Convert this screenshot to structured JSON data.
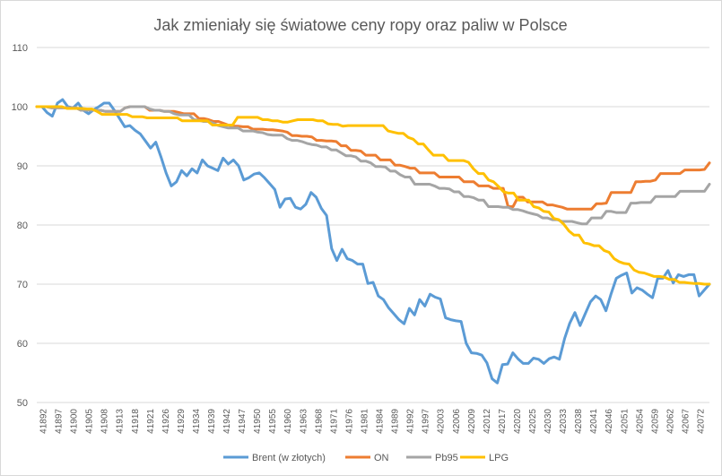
{
  "chart_data": {
    "type": "line",
    "title": "Jak zmieniały się światowe ceny ropy oraz paliw w Polsce",
    "xlabel": "",
    "ylabel": "",
    "ylim": [
      50,
      110
    ],
    "yticks": [
      50,
      60,
      70,
      80,
      90,
      100,
      110
    ],
    "grid": true,
    "legend_position": "bottom",
    "x_tick_labels": [
      "41892",
      "41897",
      "41900",
      "41905",
      "41908",
      "41913",
      "41918",
      "41921",
      "41926",
      "41929",
      "41934",
      "41939",
      "41942",
      "41947",
      "41950",
      "41955",
      "41960",
      "41963",
      "41968",
      "41971",
      "41976",
      "41981",
      "41984",
      "41989",
      "41992",
      "41997",
      "42003",
      "42006",
      "42009",
      "42012",
      "42017",
      "42020",
      "42025",
      "42030",
      "42033",
      "42038",
      "42041",
      "42046",
      "42051",
      "42054",
      "42059",
      "42062",
      "42067",
      "42072"
    ],
    "series": [
      {
        "name": "Brent (w złotych)",
        "color": "#5b9bd5",
        "values": [
          100,
          100,
          99,
          98.4,
          100.6,
          101.2,
          100,
          99.8,
          100.6,
          99.4,
          98.8,
          99.5,
          100,
          100.6,
          100.6,
          99.4,
          98,
          96.6,
          96.8,
          96,
          95.4,
          94.2,
          93,
          94,
          91.5,
          88.8,
          86.6,
          87.3,
          89.2,
          88.3,
          89.5,
          88.8,
          91,
          90,
          89.6,
          89.2,
          91.3,
          90.3,
          91,
          90,
          87.6,
          88,
          88.6,
          88.8,
          88,
          87,
          86,
          83,
          84.4,
          84.5,
          83,
          82.7,
          83.5,
          85.5,
          84.7,
          82.8,
          81.6,
          76,
          74,
          75.9,
          74.3,
          74,
          73.4,
          73.4,
          70.1,
          70.3,
          68,
          67.4,
          66,
          65,
          64,
          63.3,
          65.9,
          64.8,
          67.4,
          66.3,
          68.3,
          67.8,
          67.5,
          64.3,
          64,
          63.8,
          63.7,
          60,
          58.4,
          58.3,
          58,
          56.7,
          54,
          53.3,
          56.4,
          56.5,
          58.4,
          57.4,
          56.6,
          56.6,
          57.5,
          57.3,
          56.6,
          57.4,
          57.7,
          57.3,
          60.8,
          63.4,
          65.2,
          63,
          65,
          67,
          68,
          67.4,
          65.5,
          68.4,
          71,
          71.5,
          71.9,
          68.5,
          69.4,
          69,
          68.3,
          67.7,
          71,
          71,
          72.3,
          70.2,
          71.6,
          71.3,
          71.6,
          71.6,
          68,
          69,
          70
        ]
      },
      {
        "name": "ON",
        "color": "#ed7d31",
        "values": [
          100,
          100,
          100,
          99.8,
          99.8,
          99.8,
          99.8,
          99.8,
          99.8,
          99.4,
          99.4,
          99.4,
          99.4,
          99.4,
          99.2,
          99.2,
          99.2,
          99.2,
          99.8,
          100,
          100,
          100,
          100,
          99.4,
          99.4,
          99.4,
          99.2,
          99.2,
          99.2,
          99,
          98.8,
          98.8,
          98.8,
          98,
          98,
          97.8,
          97.5,
          97.5,
          97.2,
          96.9,
          96.7,
          96.7,
          96.6,
          96.6,
          96.2,
          96.2,
          96.2,
          96.1,
          96.1,
          96,
          95.9,
          95.7,
          95.1,
          95.1,
          95,
          95,
          94.9,
          94.3,
          94.3,
          94.2,
          94.2,
          94.1,
          93.4,
          93.4,
          92.6,
          92.6,
          92.5,
          91.8,
          91.8,
          91.8,
          91,
          91,
          91,
          90.1,
          90.1,
          89.9,
          89.6,
          89.6,
          88.8,
          88.8,
          88.8,
          88.8,
          88.1,
          88.1,
          88.1,
          88.1,
          88.1,
          87.3,
          87.3,
          87.3,
          86.6,
          86.6,
          86.6,
          86.2,
          86.2,
          86.2,
          83.1,
          83.1,
          84.7,
          84.7,
          83.9,
          83.9,
          83.9,
          83.9,
          83.4,
          83.4,
          83.2,
          83,
          82.7,
          82.7,
          82.7,
          82.7,
          82.7,
          82.7,
          83.6,
          83.6,
          83.7,
          85.5,
          85.5,
          85.5,
          85.5,
          85.5,
          87.3,
          87.3,
          87.4,
          87.4,
          87.6,
          88.7,
          88.7,
          88.7,
          88.7,
          88.7,
          89.3,
          89.3,
          89.3,
          89.3,
          89.4,
          90.5
        ]
      },
      {
        "name": "Pb95",
        "color": "#a5a5a5",
        "values": [
          100,
          100,
          100,
          99.8,
          99.8,
          99.8,
          99.8,
          99.8,
          99.8,
          99.4,
          99.4,
          99.4,
          99.4,
          99.4,
          99.2,
          99.2,
          99.2,
          99.2,
          99.8,
          100,
          100,
          100,
          100,
          99.6,
          99.4,
          99.4,
          99.2,
          99.2,
          98.8,
          98.6,
          98.6,
          98.6,
          97.8,
          97.7,
          97.5,
          97.5,
          97.2,
          96.8,
          96.6,
          96.4,
          96.4,
          96.4,
          95.9,
          95.9,
          95.9,
          95.7,
          95.6,
          95.3,
          95.2,
          95.2,
          95.2,
          94.6,
          94.3,
          94.3,
          94.1,
          93.8,
          93.6,
          93.5,
          93.2,
          93.2,
          92.7,
          92.7,
          92.2,
          91.7,
          91.7,
          91.5,
          90.8,
          90.8,
          90.5,
          89.9,
          89.9,
          89.8,
          89.1,
          89.1,
          88.5,
          88.1,
          88.1,
          86.9,
          86.9,
          86.9,
          86.9,
          86.6,
          86.2,
          86.2,
          86.1,
          85.6,
          85.6,
          84.8,
          84.8,
          84.6,
          84.2,
          84.2,
          83.1,
          83.1,
          83.1,
          83,
          83,
          82.6,
          82.6,
          82.4,
          82.1,
          81.9,
          81.7,
          81.2,
          81.2,
          80.9,
          80.9,
          80.6,
          80.6,
          80.6,
          80.4,
          80.2,
          80.2,
          81.2,
          81.2,
          81.2,
          82.3,
          82.3,
          82.1,
          82.1,
          82.1,
          83.7,
          83.7,
          83.8,
          83.8,
          83.8,
          84.8,
          84.8,
          84.8,
          84.8,
          84.8,
          85.7,
          85.7,
          85.7,
          85.7,
          85.7,
          85.7,
          86.9
        ]
      },
      {
        "name": "LPG",
        "color": "#ffc000",
        "values": [
          100,
          100,
          100,
          100,
          100,
          100,
          99.7,
          99.7,
          99.7,
          99.7,
          99.6,
          99.6,
          99.2,
          98.7,
          98.7,
          98.7,
          98.7,
          98.7,
          98.7,
          98.3,
          98.3,
          98.3,
          98.1,
          98.1,
          98.1,
          98.1,
          98.1,
          98.1,
          98.1,
          97.6,
          97.6,
          97.6,
          97.6,
          97.6,
          97.6,
          96.9,
          96.9,
          96.9,
          96.9,
          96.9,
          98.2,
          98.2,
          98.2,
          98.2,
          98.2,
          97.8,
          97.8,
          97.6,
          97.6,
          97.4,
          97.4,
          97.6,
          97.8,
          97.8,
          97.8,
          97.8,
          97.6,
          97.6,
          97.1,
          97,
          97,
          96.7,
          96.8,
          96.8,
          96.8,
          96.8,
          96.8,
          96.8,
          96.8,
          96.8,
          95.9,
          95.7,
          95.5,
          95.5,
          94.8,
          94.5,
          93.7,
          93.7,
          92.7,
          91.8,
          91.8,
          91.8,
          90.9,
          90.9,
          90.9,
          90.9,
          90.6,
          89.5,
          88.7,
          88.7,
          87.6,
          87.3,
          86.5,
          85.6,
          85.4,
          85.4,
          84.2,
          84.2,
          84.2,
          83.1,
          82.9,
          82.3,
          82.2,
          81.1,
          80.9,
          80.1,
          79,
          78.3,
          78.3,
          77,
          76.8,
          76.5,
          76.5,
          75.7,
          75.4,
          74.3,
          73.8,
          73.5,
          73.4,
          72.4,
          72,
          71.9,
          71.6,
          71.3,
          71.3,
          71.2,
          70.8,
          70.8,
          70.3,
          70.3,
          70.2,
          70.1,
          70.1,
          70,
          70
        ]
      }
    ]
  }
}
